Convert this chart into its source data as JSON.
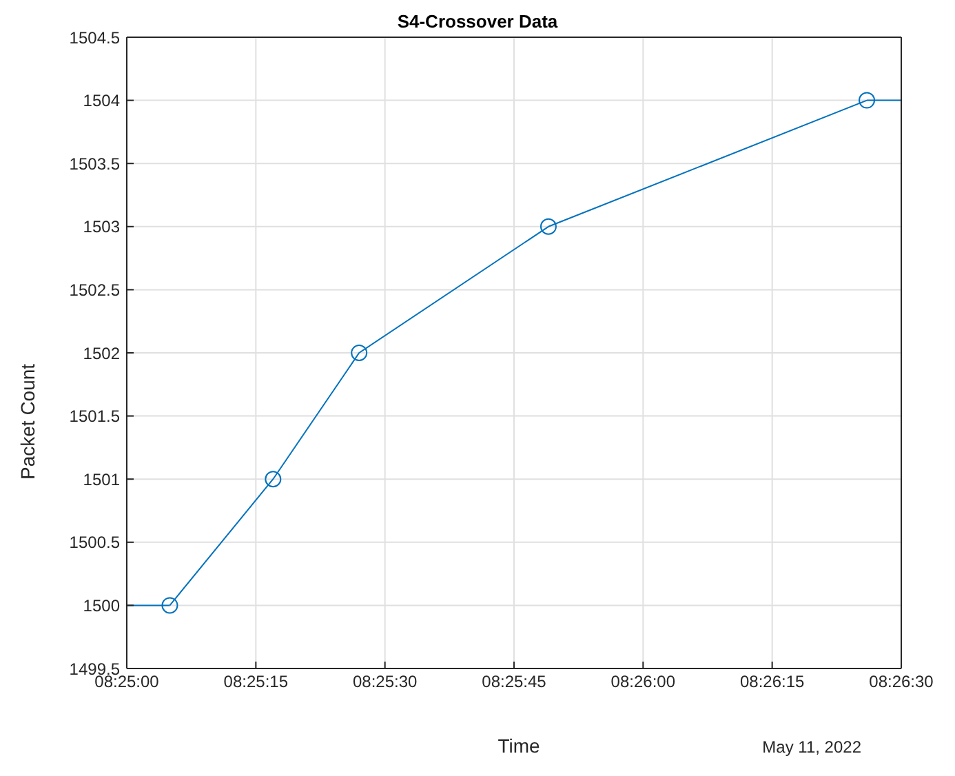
{
  "chart_data": {
    "type": "line",
    "title": "S4-Crossover Data",
    "xlabel": "Time",
    "ylabel": "Packet Count",
    "annotations": [
      "May 11, 2022"
    ],
    "series": [
      {
        "color": "#0072bd",
        "x": [
          "2022-05-11T08:25:00",
          "2022-05-11T08:25:05"
        ],
        "values": [
          1500,
          1500
        ]
      },
      {
        "color": "#0072bd",
        "marker": "circle",
        "x": [
          "2022-05-11T08:25:05",
          "2022-05-11T08:25:17",
          "2022-05-11T08:25:27",
          "2022-05-11T08:25:49",
          "2022-05-11T08:26:26"
        ],
        "values": [
          1500,
          1501,
          1502,
          1503,
          1504
        ]
      },
      {
        "color": "#0072bd",
        "x": [
          "2022-05-11T08:26:26",
          "2022-05-11T08:26:30"
        ],
        "values": [
          1504,
          1504
        ]
      }
    ],
    "xlim": [
      "2022-05-11T08:25:00",
      "2022-05-11T08:26:30"
    ],
    "xticks": [
      {
        "value": "2022-05-11T08:25:00",
        "label": "08:25:00"
      },
      {
        "value": "2022-05-11T08:25:15",
        "label": "08:25:15"
      },
      {
        "value": "2022-05-11T08:25:30",
        "label": "08:25:30"
      },
      {
        "value": "2022-05-11T08:25:45",
        "label": "08:25:45"
      },
      {
        "value": "2022-05-11T08:26:00",
        "label": "08:26:00"
      },
      {
        "value": "2022-05-11T08:26:15",
        "label": "08:26:15"
      },
      {
        "value": "2022-05-11T08:26:30",
        "label": "08:26:30"
      }
    ],
    "ylim": [
      1499.5,
      1504.5
    ],
    "yticks": [
      1499.5,
      1500,
      1500.5,
      1501,
      1501.5,
      1502,
      1502.5,
      1503,
      1503.5,
      1504,
      1504.5
    ],
    "grid": true,
    "line_style": "solid"
  }
}
